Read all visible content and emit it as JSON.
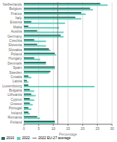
{
  "chart_data": {
    "type": "bar",
    "orientation": "horizontal",
    "categories": [
      "Netherlands",
      "Belgium",
      "France",
      "Italy",
      "Estonia",
      "Malta",
      "Austria",
      "Germany",
      "Czechia",
      "Slovenia",
      "Slovakia",
      "Poland",
      "Hungary",
      "Denmark",
      "Spain",
      "Sweden",
      "Croatia",
      "Latvia",
      "Luxembourg",
      "Bulgaria",
      "Lithuania",
      "Cyprus",
      "Greece",
      "Portugal",
      "Ireland",
      "Romania",
      "Finland"
    ],
    "series": [
      {
        "name": "2010",
        "color": "#2d6b5e",
        "values": [
          26.0,
          22.5,
          19.5,
          17.5,
          2.5,
          1.5,
          4.5,
          12.5,
          3.5,
          4.5,
          8.5,
          10.5,
          3.5,
          7.5,
          10.5,
          9.0,
          1.5,
          1.0,
          1.5,
          2.0,
          2.5,
          2.0,
          2.0,
          1.5,
          1.5,
          4.5,
          10.5
        ]
      },
      {
        "name": "2022",
        "color": "#5ecfbc",
        "values": [
          28.5,
          23.5,
          21.0,
          19.5,
          14.0,
          12.0,
          13.5,
          13.5,
          7.5,
          7.5,
          9.0,
          11.0,
          5.5,
          7.5,
          10.5,
          8.5,
          2.5,
          1.5,
          24.0,
          3.5,
          4.0,
          3.5,
          3.0,
          2.5,
          2.0,
          5.5,
          10.5
        ]
      }
    ],
    "reference_lines": [
      {
        "x": 11.5,
        "name": "2022 EU-27 average",
        "color": "#666666"
      }
    ],
    "xlabel": "Percentage",
    "xlim": [
      0,
      30
    ],
    "xticks": [
      0,
      5,
      10,
      15,
      20,
      25,
      30
    ],
    "grid": true,
    "legend": "bottom"
  }
}
